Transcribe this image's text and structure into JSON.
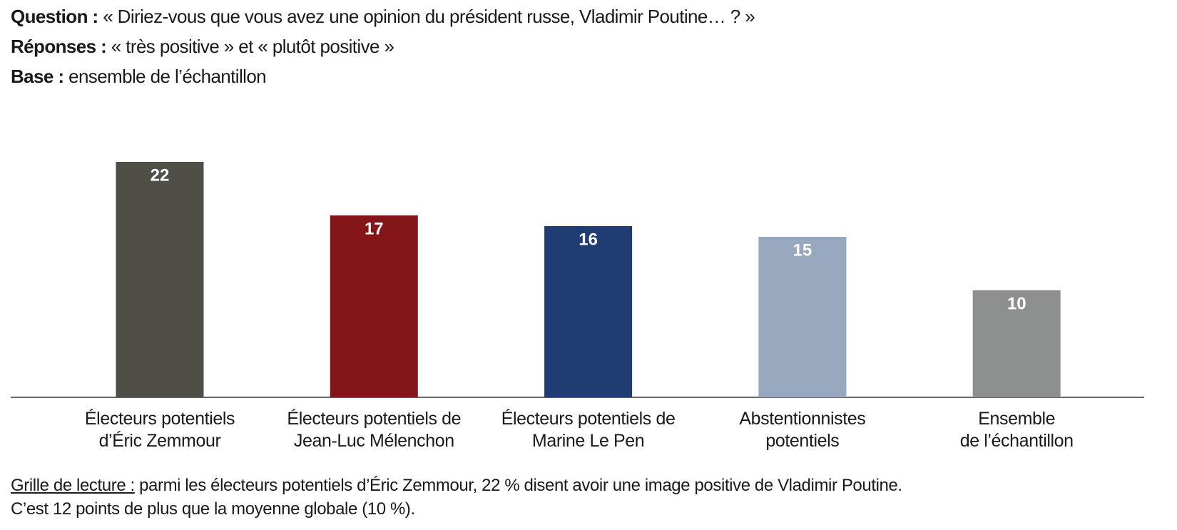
{
  "header": [
    {
      "label": "Question :",
      "text": "« Diriez-vous que vous avez une opinion du président russe, Vladimir Poutine… ? »"
    },
    {
      "label": "Réponses :",
      "text": "« très positive » et « plutôt positive »"
    },
    {
      "label": "Base :",
      "text": "ensemble de l’échantillon"
    }
  ],
  "chart_data": {
    "type": "bar",
    "categories": [
      "Électeurs potentiels\nd’Éric Zemmour",
      "Électeurs potentiels de\nJean-Luc Mélenchon",
      "Électeurs potentiels de\nMarine Le Pen",
      "Abstentionnistes\npotentiels",
      "Ensemble\nde l’échantillon"
    ],
    "values": [
      22,
      17,
      16,
      15,
      10
    ],
    "colors": [
      "#4f4f47",
      "#84161a",
      "#1f3c73",
      "#98a8be",
      "#8e9090"
    ]
  },
  "footnote": {
    "label": "Grille de lecture :",
    "text": "parmi les électeurs potentiels d’Éric Zemmour, 22 % disent avoir une image positive de Vladimir Poutine.\nC’est 12 points de plus que la moyenne globale (10 %)."
  }
}
